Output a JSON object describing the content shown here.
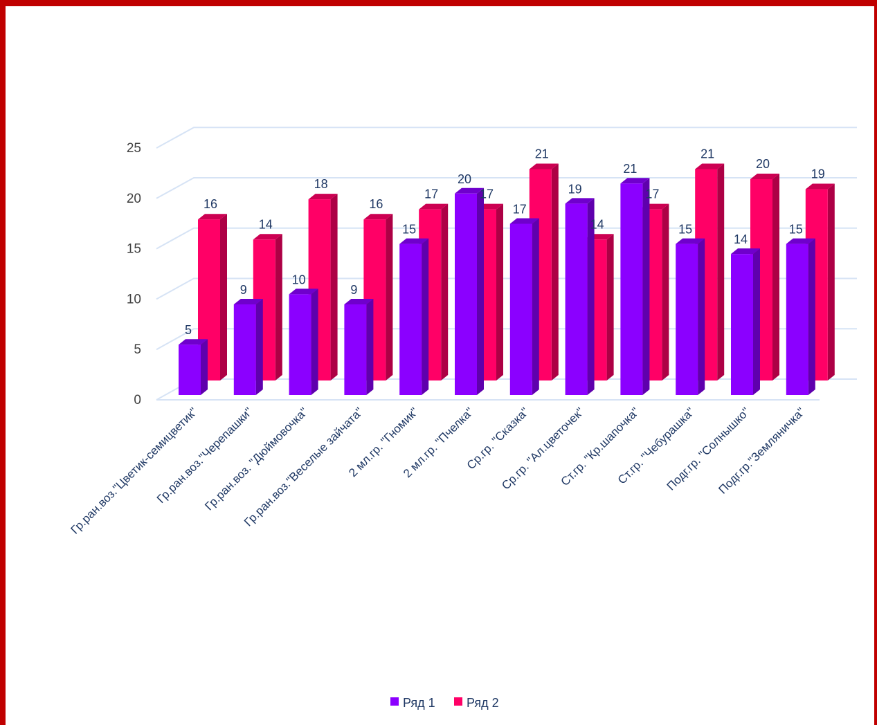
{
  "chart_data": {
    "type": "bar",
    "title": "",
    "xlabel": "",
    "ylabel": "",
    "ylim": [
      0,
      25
    ],
    "grid": true,
    "legend_position": "bottom",
    "yticks": [
      0,
      5,
      10,
      15,
      20,
      25
    ],
    "categories": [
      "Гр.ран.воз.\"Цветик-семицветик\"",
      "Гр.ран.воз.\"Черепашки\"",
      "Гр.ран.воз. \"Дюймовочка\"",
      "Гр.ран.воз.\"Веселые зайчата\"",
      "2 мл.гр. \"Гномик\"",
      "2 мл.гр. \"Пчелка\"",
      "Ср.гр. \"Сказка\"",
      "Ср.гр. \"Ал.цветочек\"",
      "Ст.гр. \"Кр.шапочка\"",
      "Ст.гр. \"Чебурашка\"",
      "Подг.гр. \"Солнышко\"",
      "Подг.гр.\"Земляничка\""
    ],
    "series": [
      {
        "name": "Ряд 1",
        "color": "#8b00ff",
        "values": [
          5,
          9,
          10,
          9,
          15,
          20,
          17,
          19,
          21,
          15,
          14,
          15
        ]
      },
      {
        "name": "Ряд 2",
        "color": "#ff0066",
        "values": [
          16,
          14,
          18,
          16,
          17,
          17,
          21,
          14,
          17,
          21,
          20,
          19
        ]
      }
    ]
  }
}
